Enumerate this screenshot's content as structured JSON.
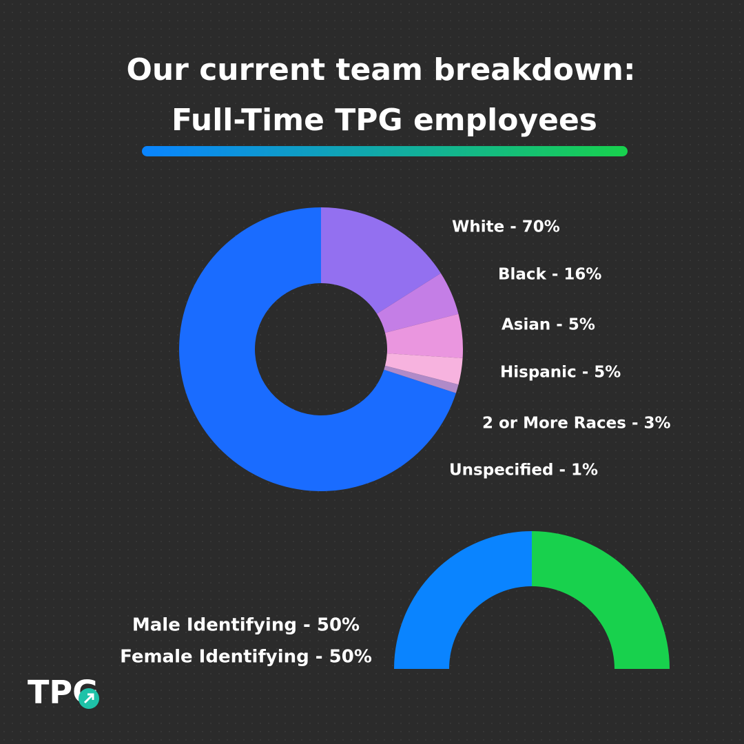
{
  "title": [
    "Our current team breakdown:",
    "Full-Time TPG employees"
  ],
  "logo": "TPG",
  "chart_data": [
    {
      "type": "donut",
      "categories": [
        "White - 70%",
        "Black - 16%",
        "Asian - 5%",
        "Hispanic - 5%",
        "2 or More Races - 3%",
        "Unspecified - 1%"
      ],
      "values": [
        70,
        16,
        5,
        5,
        3,
        1
      ],
      "colors": [
        "#1a6cff",
        "#9370f0",
        "#c47ee6",
        "#ea96df",
        "#f7b3df",
        "#b08ac8"
      ]
    },
    {
      "type": "half-donut",
      "categories": [
        "Male Identifying - 50%",
        "Female Identifying - 50%"
      ],
      "values": [
        50,
        50
      ],
      "colors": [
        "#0a84ff",
        "#18d14d"
      ]
    }
  ]
}
